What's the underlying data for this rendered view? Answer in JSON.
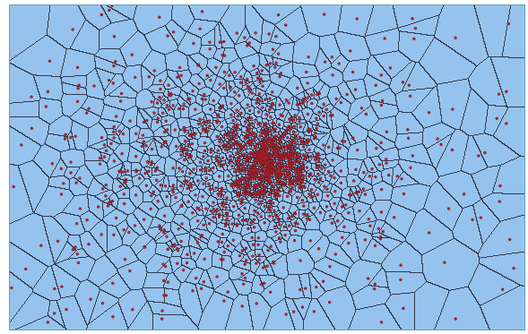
{
  "diagram": {
    "kind": "voronoi-tessellation",
    "cell_fill": "#96c3ee",
    "edge_color": "#1c1c2a",
    "site_color": "#b2232b",
    "site_stroke": "#6e1116",
    "frame_color": "#5fa3a8",
    "site_count": 1300,
    "distribution": "dense-central-cluster"
  }
}
